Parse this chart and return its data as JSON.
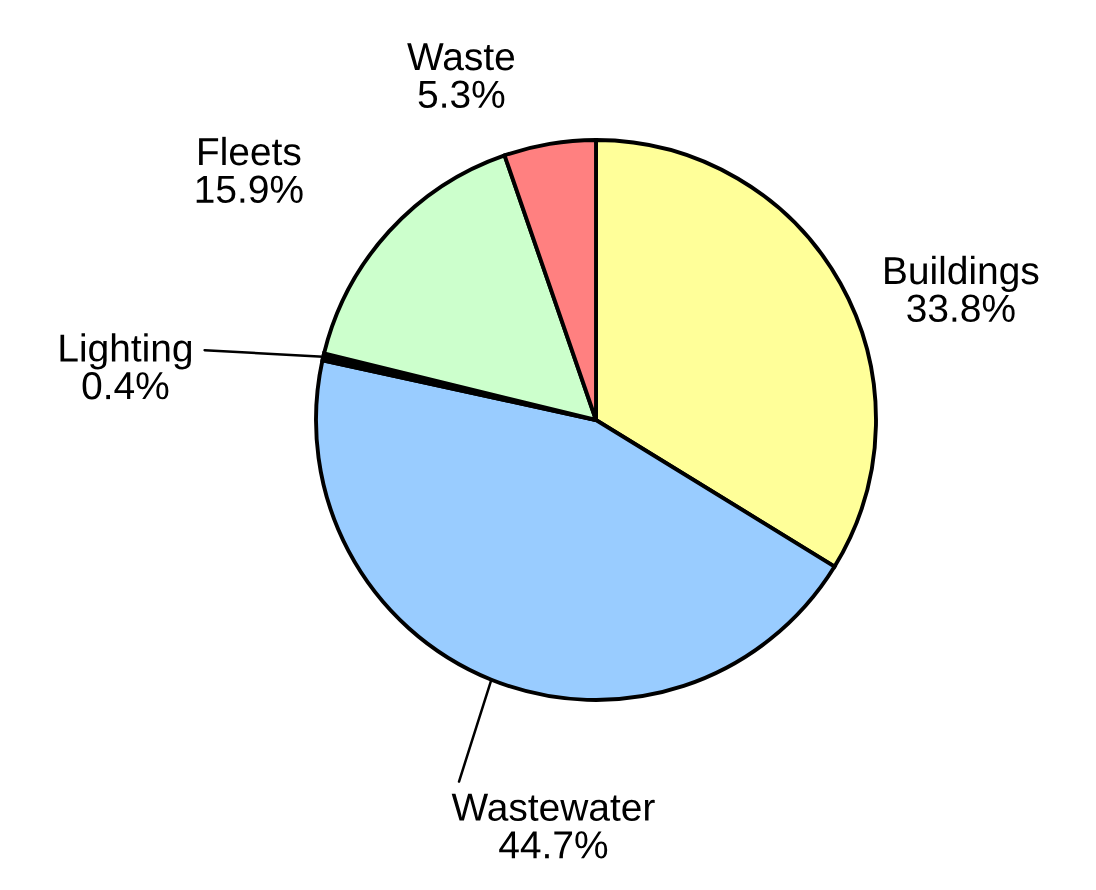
{
  "chart_data": {
    "type": "pie",
    "categories": [
      "Buildings",
      "Wastewater",
      "Lighting",
      "Fleets",
      "Waste"
    ],
    "values": [
      33.8,
      44.7,
      0.4,
      15.9,
      5.3
    ],
    "value_labels": [
      "33.8%",
      "44.7%",
      "0.4%",
      "15.9%",
      "5.3%"
    ],
    "colors": [
      "#ffff99",
      "#99ccff",
      "#000000",
      "#ccffcc",
      "#ff8080"
    ]
  }
}
